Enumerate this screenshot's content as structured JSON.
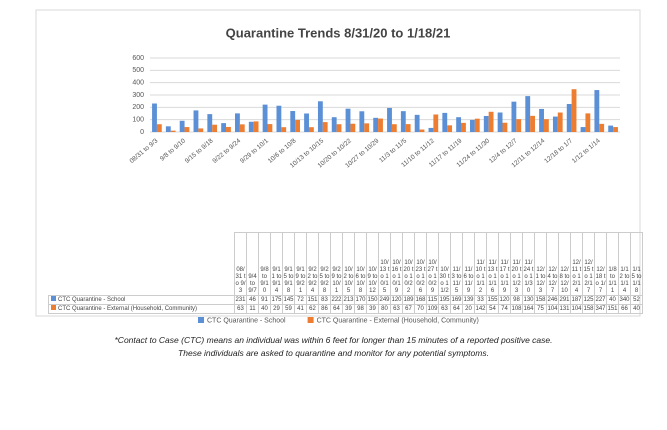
{
  "chart_data": {
    "type": "bar",
    "title": "Quarantine Trends 8/31/20 to 1/18/21",
    "categories": [
      "08/31 to 9/3",
      "9/4 to 9/7",
      "9/8 to 9/10",
      "9/11 to 9/14",
      "9/15 to 9/18",
      "9/19 to 9/21",
      "9/22 to 9/24",
      "9/25 to 9/28",
      "9/29 to 10/1",
      "10/2 to 10/5",
      "10/6 to 10/8",
      "10/9 to 10/12",
      "10/13 to 10/15",
      "10/16 to 10/19",
      "10/20 to 10/22",
      "10/23 to 10/26",
      "10/27 to 10/29",
      "10/30 to 11/2",
      "11/3 to 11/5",
      "11/6 to 11/9",
      "11/10 to 11/12",
      "11/13 to 11/16",
      "11/17 to 11/19",
      "11/20 to 11/23",
      "11/24 to 11/30",
      "12/1 to 12/3",
      "12/4 to 12/7",
      "12/8 to 12/10",
      "12/11 to 12/14",
      "12/15 to 12/17",
      "12/18 to 1/7",
      "1/8 to 1/11",
      "1/12 to 1/14",
      "1/15 to 1/18"
    ],
    "series": [
      {
        "name": "CTC Quarantine - School",
        "color": "#5b8fd6",
        "values": [
          231,
          46,
          91,
          175,
          145,
          72,
          151,
          83,
          222,
          213,
          170,
          150,
          249,
          120,
          189,
          168,
          115,
          195,
          169,
          139,
          33,
          155,
          120,
          98,
          130,
          158,
          246,
          291,
          187,
          125,
          227,
          40,
          340,
          52
        ]
      },
      {
        "name": "CTC Quarantine - External (Household, Community)",
        "color": "#ed7d31",
        "values": [
          63,
          11,
          40,
          29,
          59,
          41,
          62,
          86,
          64,
          39,
          98,
          39,
          80,
          63,
          67,
          70,
          109,
          63,
          64,
          20,
          142,
          54,
          74,
          108,
          164,
          75,
          104,
          131,
          104,
          158,
          347,
          151,
          66,
          40
        ]
      }
    ],
    "ylim": [
      0,
      600
    ],
    "yticks": [
      0,
      100,
      200,
      300,
      400,
      500,
      600
    ],
    "grid": true,
    "footnote": [
      "*Contact to Case (CTC) means an individual was within 6 feet for longer than 15 minutes of a reported positive case.",
      "These individuals are asked to quarantine and monitor for any potential symptoms."
    ]
  }
}
